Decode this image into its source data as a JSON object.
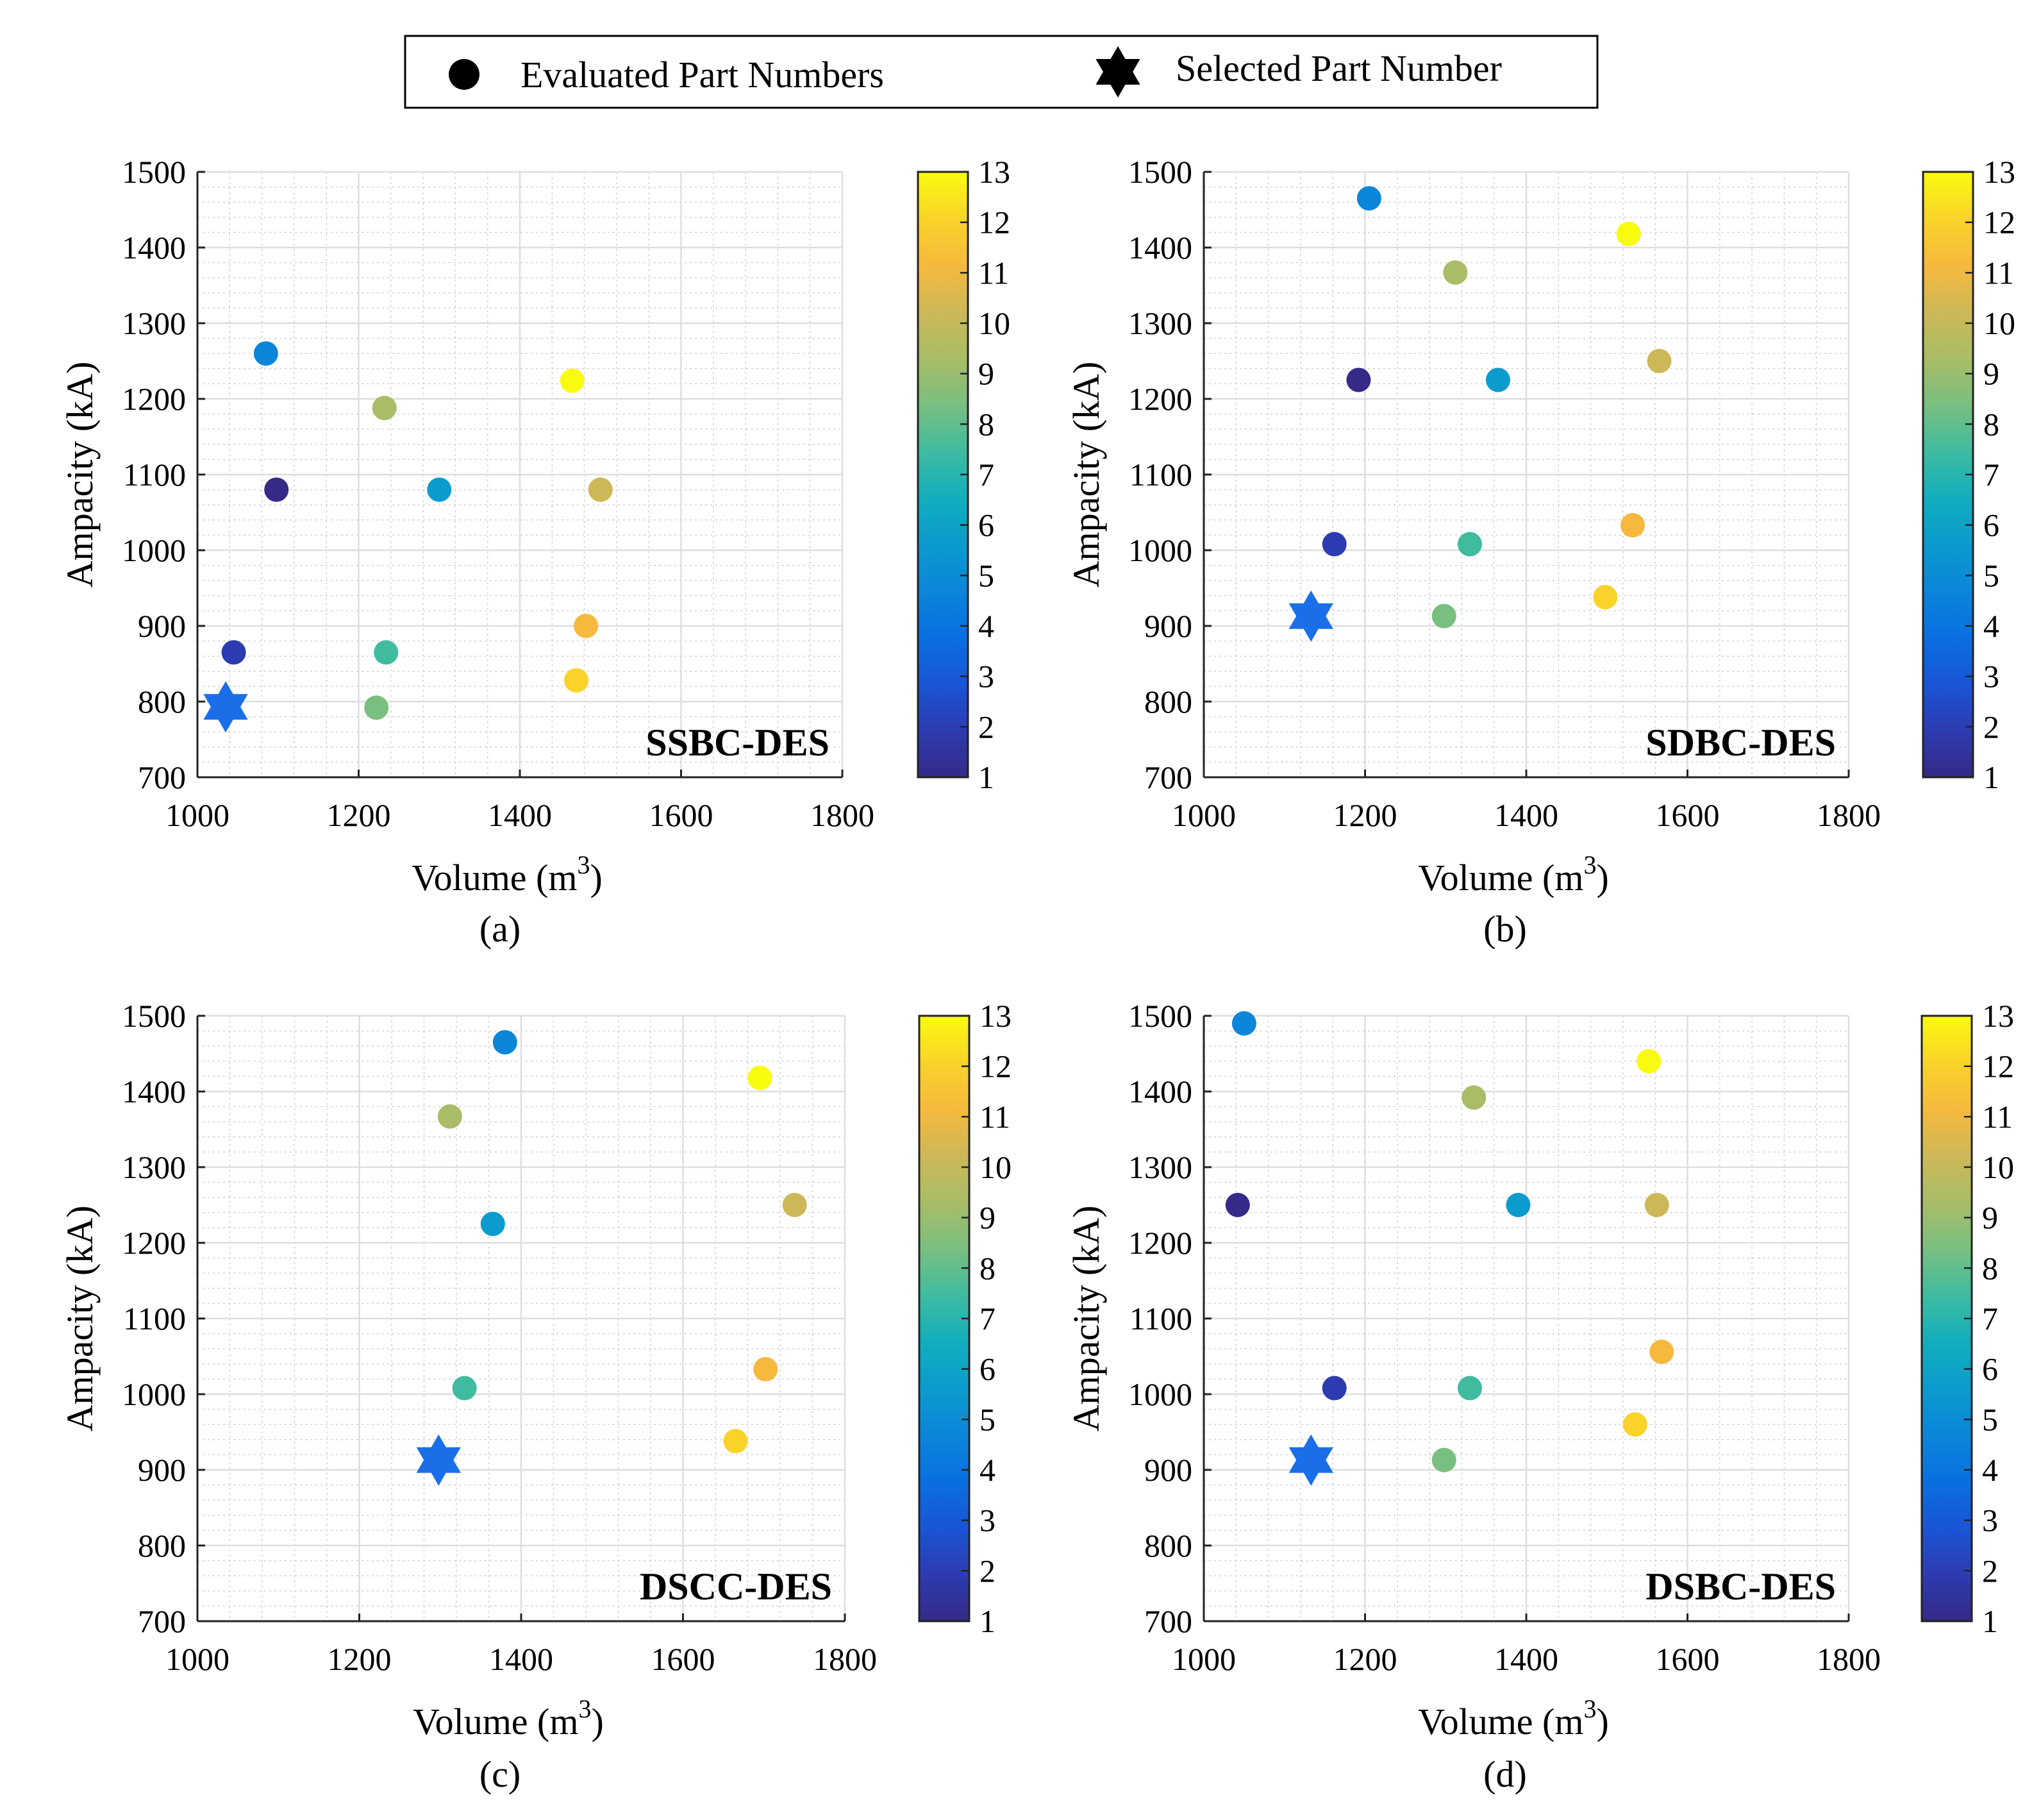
{
  "legend": {
    "evaluated_label": "Evaluated Part Numbers",
    "selected_label": "Selected Part Number"
  },
  "colors": {
    "selected_star": "#1a6fe8",
    "parula": [
      "#352a87",
      "#2d3bb0",
      "#1a55d6",
      "#0a6fe1",
      "#0b86d9",
      "#0b9bcd",
      "#12aebd",
      "#3fbba0",
      "#79bf80",
      "#a8bd66",
      "#cdb858",
      "#f6b93d",
      "#f9d32a",
      "#f9fb0e"
    ]
  },
  "chart_data": [
    {
      "type": "scatter",
      "panel_label": "SSBC-DES",
      "caption": "(a)",
      "xlabel_main": "Volume (m",
      "xlabel_sup": "3",
      "xlabel_end": ")",
      "ylabel": "Ampacity (kA)",
      "xlim": [
        1000,
        1800
      ],
      "ylim": [
        700,
        1500
      ],
      "xticks": [
        "1000",
        "1200",
        "1400",
        "1600",
        "1800"
      ],
      "yticks": [
        "700",
        "800",
        "900",
        "1000",
        "1100",
        "1200",
        "1300",
        "1400",
        "1500"
      ],
      "colorbar": {
        "min": 1,
        "max": 13,
        "ticks": [
          "1",
          "2",
          "3",
          "4",
          "5",
          "6",
          "7",
          "8",
          "9",
          "10",
          "11",
          "12",
          "13"
        ]
      },
      "points": [
        {
          "x": 1085,
          "y": 1260,
          "c": 5
        },
        {
          "x": 1232,
          "y": 1188,
          "c": 9
        },
        {
          "x": 1098,
          "y": 1080,
          "c": 1
        },
        {
          "x": 1300,
          "y": 1080,
          "c": 6
        },
        {
          "x": 1465,
          "y": 1224,
          "c": 12.8
        },
        {
          "x": 1500,
          "y": 1080,
          "c": 10
        },
        {
          "x": 1045,
          "y": 865,
          "c": 2
        },
        {
          "x": 1234,
          "y": 865,
          "c": 7
        },
        {
          "x": 1482,
          "y": 900,
          "c": 11
        },
        {
          "x": 1470,
          "y": 828,
          "c": 12
        },
        {
          "x": 1222,
          "y": 792,
          "c": 8
        }
      ],
      "selected": {
        "x": 1035,
        "y": 793
      }
    },
    {
      "type": "scatter",
      "panel_label": "SDBC-DES",
      "caption": "(b)",
      "xlabel_main": "Volume (m",
      "xlabel_sup": "3",
      "xlabel_end": ")",
      "ylabel": "Ampacity (kA)",
      "xlim": [
        1000,
        1800
      ],
      "ylim": [
        700,
        1500
      ],
      "xticks": [
        "1000",
        "1200",
        "1400",
        "1600",
        "1800"
      ],
      "yticks": [
        "700",
        "800",
        "900",
        "1000",
        "1100",
        "1200",
        "1300",
        "1400",
        "1500"
      ],
      "colorbar": {
        "min": 1,
        "max": 13,
        "ticks": [
          "1",
          "2",
          "3",
          "4",
          "5",
          "6",
          "7",
          "8",
          "9",
          "10",
          "11",
          "12",
          "13"
        ]
      },
      "points": [
        {
          "x": 1205,
          "y": 1465,
          "c": 5
        },
        {
          "x": 1527,
          "y": 1418,
          "c": 12.8
        },
        {
          "x": 1312,
          "y": 1367,
          "c": 9
        },
        {
          "x": 1565,
          "y": 1250,
          "c": 10
        },
        {
          "x": 1192,
          "y": 1225,
          "c": 1
        },
        {
          "x": 1365,
          "y": 1225,
          "c": 6
        },
        {
          "x": 1162,
          "y": 1008,
          "c": 2
        },
        {
          "x": 1330,
          "y": 1008,
          "c": 7
        },
        {
          "x": 1532,
          "y": 1033,
          "c": 11
        },
        {
          "x": 1498,
          "y": 938,
          "c": 12
        },
        {
          "x": 1298,
          "y": 913,
          "c": 8
        }
      ],
      "selected": {
        "x": 1133,
        "y": 913
      }
    },
    {
      "type": "scatter",
      "panel_label": "DSCC-DES",
      "caption": "(c)",
      "xlabel_main": "Volume (m",
      "xlabel_sup": "3",
      "xlabel_end": ")",
      "ylabel": "Ampacity (kA)",
      "xlim": [
        1000,
        1800
      ],
      "ylim": [
        700,
        1500
      ],
      "xticks": [
        "1000",
        "1200",
        "1400",
        "1600",
        "1800"
      ],
      "yticks": [
        "700",
        "800",
        "900",
        "1000",
        "1100",
        "1200",
        "1300",
        "1400",
        "1500"
      ],
      "colorbar": {
        "min": 1,
        "max": 13,
        "ticks": [
          "1",
          "2",
          "3",
          "4",
          "5",
          "6",
          "7",
          "8",
          "9",
          "10",
          "11",
          "12",
          "13"
        ]
      },
      "points": [
        {
          "x": 1380,
          "y": 1465,
          "c": 5
        },
        {
          "x": 1695,
          "y": 1418,
          "c": 12.8
        },
        {
          "x": 1312,
          "y": 1367,
          "c": 9
        },
        {
          "x": 1738,
          "y": 1250,
          "c": 10
        },
        {
          "x": 1365,
          "y": 1225,
          "c": 6
        },
        {
          "x": 1330,
          "y": 1008,
          "c": 7
        },
        {
          "x": 1702,
          "y": 1033,
          "c": 11
        },
        {
          "x": 1665,
          "y": 938,
          "c": 12
        }
      ],
      "selected": {
        "x": 1298,
        "y": 913
      }
    },
    {
      "type": "scatter",
      "panel_label": "DSBC-DES",
      "caption": "(d)",
      "xlabel_main": "Volume (m",
      "xlabel_sup": "3",
      "xlabel_end": ")",
      "ylabel": "Ampacity (kA)",
      "xlim": [
        1000,
        1800
      ],
      "ylim": [
        700,
        1500
      ],
      "xticks": [
        "1000",
        "1200",
        "1400",
        "1600",
        "1800"
      ],
      "yticks": [
        "700",
        "800",
        "900",
        "1000",
        "1100",
        "1200",
        "1300",
        "1400",
        "1500"
      ],
      "colorbar": {
        "min": 1,
        "max": 13,
        "ticks": [
          "1",
          "2",
          "3",
          "4",
          "5",
          "6",
          "7",
          "8",
          "9",
          "10",
          "11",
          "12",
          "13"
        ]
      },
      "points": [
        {
          "x": 1050,
          "y": 1490,
          "c": 5
        },
        {
          "x": 1552,
          "y": 1440,
          "c": 12.8
        },
        {
          "x": 1335,
          "y": 1392,
          "c": 9
        },
        {
          "x": 1042,
          "y": 1250,
          "c": 1
        },
        {
          "x": 1390,
          "y": 1250,
          "c": 6
        },
        {
          "x": 1562,
          "y": 1250,
          "c": 10
        },
        {
          "x": 1162,
          "y": 1008,
          "c": 2
        },
        {
          "x": 1330,
          "y": 1008,
          "c": 7
        },
        {
          "x": 1568,
          "y": 1056,
          "c": 11
        },
        {
          "x": 1535,
          "y": 960,
          "c": 12
        },
        {
          "x": 1298,
          "y": 913,
          "c": 8
        }
      ],
      "selected": {
        "x": 1133,
        "y": 913
      }
    }
  ]
}
